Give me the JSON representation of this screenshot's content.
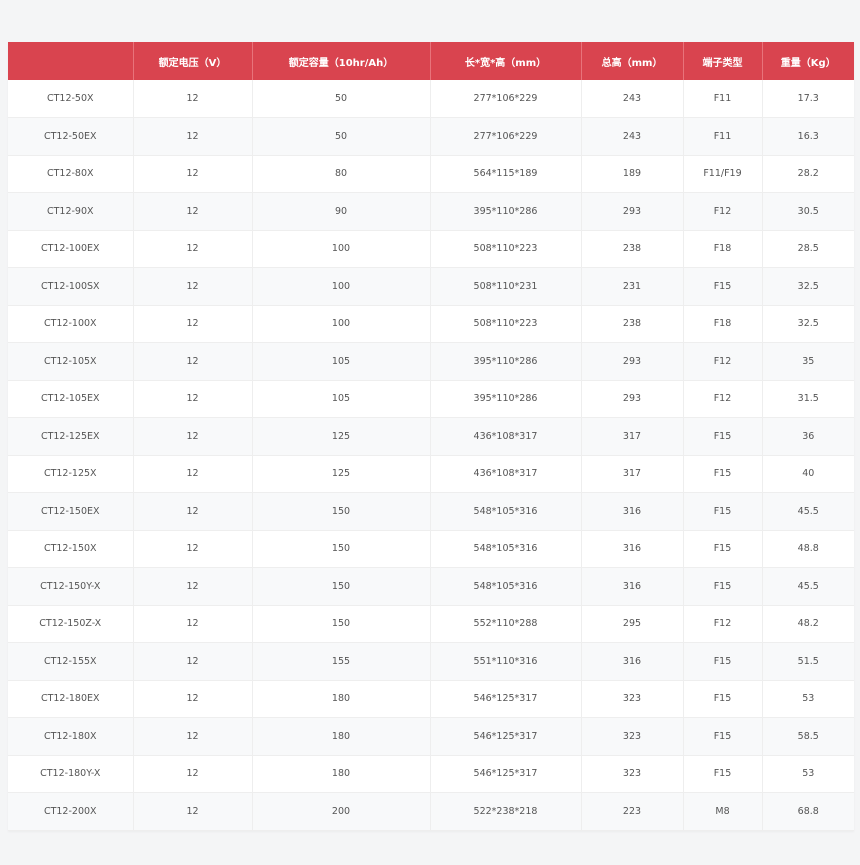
{
  "table": {
    "headers": [
      "",
      "额定电压（V）",
      "额定容量（10hr/Ah）",
      "长*宽*高（mm）",
      "总高（mm）",
      "端子类型",
      "重量（Kg）"
    ],
    "rows": [
      [
        "CT12-50X",
        "12",
        "50",
        "277*106*229",
        "243",
        "F11",
        "17.3"
      ],
      [
        "CT12-50EX",
        "12",
        "50",
        "277*106*229",
        "243",
        "F11",
        "16.3"
      ],
      [
        "CT12-80X",
        "12",
        "80",
        "564*115*189",
        "189",
        "F11/F19",
        "28.2"
      ],
      [
        "CT12-90X",
        "12",
        "90",
        "395*110*286",
        "293",
        "F12",
        "30.5"
      ],
      [
        "CT12-100EX",
        "12",
        "100",
        "508*110*223",
        "238",
        "F18",
        "28.5"
      ],
      [
        "CT12-100SX",
        "12",
        "100",
        "508*110*231",
        "231",
        "F15",
        "32.5"
      ],
      [
        "CT12-100X",
        "12",
        "100",
        "508*110*223",
        "238",
        "F18",
        "32.5"
      ],
      [
        "CT12-105X",
        "12",
        "105",
        "395*110*286",
        "293",
        "F12",
        "35"
      ],
      [
        "CT12-105EX",
        "12",
        "105",
        "395*110*286",
        "293",
        "F12",
        "31.5"
      ],
      [
        "CT12-125EX",
        "12",
        "125",
        "436*108*317",
        "317",
        "F15",
        "36"
      ],
      [
        "CT12-125X",
        "12",
        "125",
        "436*108*317",
        "317",
        "F15",
        "40"
      ],
      [
        "CT12-150EX",
        "12",
        "150",
        "548*105*316",
        "316",
        "F15",
        "45.5"
      ],
      [
        "CT12-150X",
        "12",
        "150",
        "548*105*316",
        "316",
        "F15",
        "48.8"
      ],
      [
        "CT12-150Y-X",
        "12",
        "150",
        "548*105*316",
        "316",
        "F15",
        "45.5"
      ],
      [
        "CT12-150Z-X",
        "12",
        "150",
        "552*110*288",
        "295",
        "F12",
        "48.2"
      ],
      [
        "CT12-155X",
        "12",
        "155",
        "551*110*316",
        "316",
        "F15",
        "51.5"
      ],
      [
        "CT12-180EX",
        "12",
        "180",
        "546*125*317",
        "323",
        "F15",
        "53"
      ],
      [
        "CT12-180X",
        "12",
        "180",
        "546*125*317",
        "323",
        "F15",
        "58.5"
      ],
      [
        "CT12-180Y-X",
        "12",
        "180",
        "546*125*317",
        "323",
        "F15",
        "53"
      ],
      [
        "CT12-200X",
        "12",
        "200",
        "522*238*218",
        "223",
        "M8",
        "68.8"
      ]
    ]
  },
  "colors": {
    "header_bg": "#d9444f",
    "header_text": "#ffffff",
    "page_bg": "#f4f5f6",
    "row_alt_bg": "#f8f9fa"
  }
}
